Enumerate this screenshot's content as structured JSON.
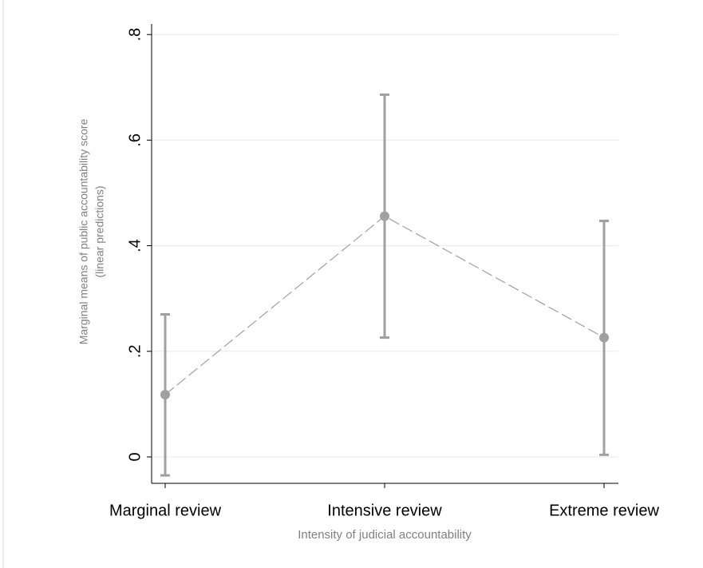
{
  "chart_data": {
    "type": "pointrange",
    "x_label": "Intensity of judicial accountability",
    "y_label": [
      "Marginal means of public accountability score",
      "(linear predictions)"
    ],
    "categories": [
      "Marginal review",
      "Intensive review",
      "Extreme review"
    ],
    "values": [
      0.118,
      0.456,
      0.226
    ],
    "lower": [
      -0.035,
      0.226,
      0.004
    ],
    "upper": [
      0.27,
      0.686,
      0.447
    ],
    "color": "#a0a0a0",
    "ylim": [
      -0.05,
      0.82
    ],
    "yticks": [
      {
        "value": 0,
        "label": "0"
      },
      {
        "value": 0.2,
        "label": ".2"
      },
      {
        "value": 0.4,
        "label": ".4"
      },
      {
        "value": 0.6,
        "label": ".6"
      },
      {
        "value": 0.8,
        "label": ".8"
      }
    ],
    "grid": true
  }
}
